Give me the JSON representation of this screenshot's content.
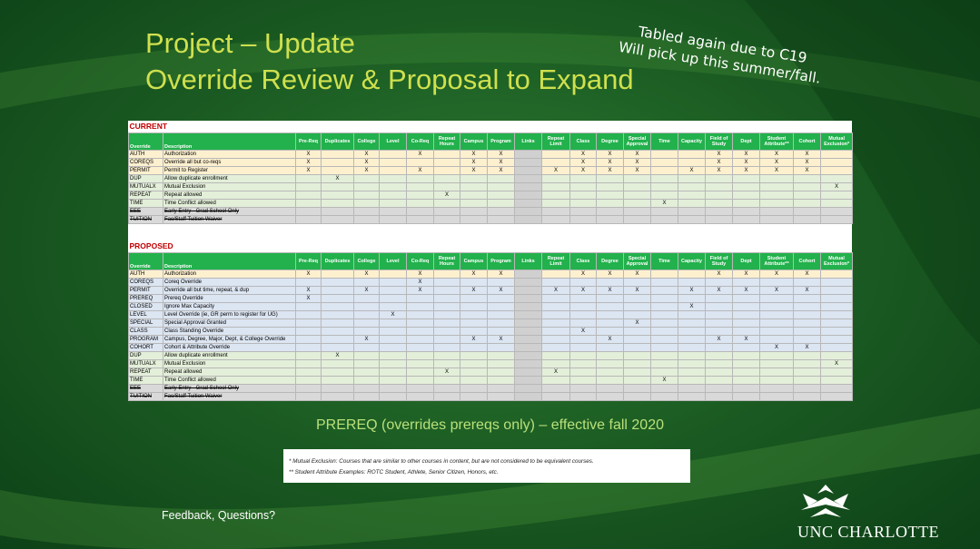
{
  "header": {
    "title": "Project – Update",
    "subtitle": "Override Review & Proposal to Expand"
  },
  "note": [
    "Tabled again due to C19",
    "Will pick up this summer/fall."
  ],
  "columns": [
    "Override",
    "Description",
    "Pre-Req",
    "Duplicates",
    "College",
    "Level",
    "Co-Req",
    "Repeat Hours",
    "Campus",
    "Program",
    "Links",
    "Repeat Limit",
    "Class",
    "Degree",
    "Special Approval",
    "Time",
    "Capacity",
    "Field of Study",
    "Dept",
    "Student Attribute**",
    "Cohort",
    "Mutual Exclusion*"
  ],
  "tables": [
    {
      "title": "CURRENT",
      "rows": [
        {
          "override": "AUTH",
          "description": "Authorization",
          "cells": [
            "X",
            null,
            "X",
            null,
            "X",
            null,
            "X",
            "X",
            null,
            null,
            "X",
            "X",
            "X",
            null,
            null,
            "X",
            "X",
            "X",
            "X",
            null
          ]
        },
        {
          "override": "COREQS",
          "description": "Override all but co-reqs",
          "cells": [
            "X",
            null,
            "X",
            null,
            null,
            null,
            "X",
            "X",
            null,
            null,
            "X",
            "X",
            "X",
            null,
            null,
            "X",
            "X",
            "X",
            "X",
            null
          ]
        },
        {
          "override": "PERMIT",
          "description": "Permit to Register",
          "cells": [
            "X",
            null,
            "X",
            null,
            "X",
            null,
            "X",
            "X",
            null,
            "X",
            "X",
            "X",
            "X",
            null,
            "X",
            "X",
            "X",
            "X",
            "X",
            null
          ]
        },
        {
          "override": "DUP",
          "description": "Allow duplicate enrollment",
          "cells": [
            null,
            "X",
            null,
            null,
            null,
            null,
            null,
            null,
            null,
            null,
            null,
            null,
            null,
            null,
            null,
            null,
            null,
            null,
            null,
            null
          ]
        },
        {
          "override": "MUTUALX",
          "description": "Mutual Exclusion",
          "cells": [
            null,
            null,
            null,
            null,
            null,
            null,
            null,
            null,
            null,
            null,
            null,
            null,
            null,
            null,
            null,
            null,
            null,
            null,
            null,
            "X"
          ]
        },
        {
          "override": "REPEAT",
          "description": "Repeat allowed",
          "cells": [
            null,
            null,
            null,
            null,
            null,
            "X",
            null,
            null,
            null,
            null,
            null,
            null,
            null,
            null,
            null,
            null,
            null,
            null,
            null,
            null
          ]
        },
        {
          "override": "TIME",
          "description": "Time Conflict allowed",
          "cells": [
            null,
            null,
            null,
            null,
            null,
            null,
            null,
            null,
            null,
            null,
            null,
            null,
            null,
            "X",
            null,
            null,
            null,
            null,
            null,
            null
          ]
        },
        {
          "override": "EEE",
          "description": "Early Entry - Grad School Only",
          "cells": [
            null,
            null,
            null,
            null,
            null,
            null,
            null,
            null,
            null,
            null,
            null,
            null,
            null,
            null,
            null,
            null,
            null,
            null,
            null,
            null
          ]
        },
        {
          "override": "TUITION",
          "description": "Fac/Staff Tuition Waiver",
          "cells": [
            null,
            null,
            null,
            null,
            null,
            null,
            null,
            null,
            null,
            null,
            null,
            null,
            null,
            null,
            null,
            null,
            null,
            null,
            null,
            null
          ]
        }
      ]
    },
    {
      "title": "PROPOSED",
      "rows": [
        {
          "override": "AUTH",
          "description": "Authorization",
          "cells": [
            "X",
            null,
            "X",
            null,
            "X",
            null,
            "X",
            "X",
            null,
            null,
            "X",
            "X",
            "X",
            null,
            null,
            "X",
            "X",
            "X",
            "X",
            null
          ]
        },
        {
          "override": "COREQS",
          "description": "Coreq Override",
          "cells": [
            null,
            null,
            null,
            null,
            "X",
            null,
            null,
            null,
            null,
            null,
            null,
            null,
            null,
            null,
            null,
            null,
            null,
            null,
            null,
            null
          ]
        },
        {
          "override": "PERMIT",
          "description": "Override all but time, repeat, & dup",
          "cells": [
            "X",
            null,
            "X",
            null,
            "X",
            null,
            "X",
            "X",
            null,
            "X",
            "X",
            "X",
            "X",
            null,
            "X",
            "X",
            "X",
            "X",
            "X",
            null
          ]
        },
        {
          "override": "PREREQ",
          "description": "Prereq Override",
          "cells": [
            "X",
            null,
            null,
            null,
            null,
            null,
            null,
            null,
            null,
            null,
            null,
            null,
            null,
            null,
            null,
            null,
            null,
            null,
            null,
            null
          ]
        },
        {
          "override": "CLOSED",
          "description": "Ignore Max Capacity",
          "cells": [
            null,
            null,
            null,
            null,
            null,
            null,
            null,
            null,
            null,
            null,
            null,
            null,
            null,
            null,
            "X",
            null,
            null,
            null,
            null,
            null
          ]
        },
        {
          "override": "LEVEL",
          "description": "Level Override (ie, GR perm to register for UG)",
          "cells": [
            null,
            null,
            null,
            "X",
            null,
            null,
            null,
            null,
            null,
            null,
            null,
            null,
            null,
            null,
            null,
            null,
            null,
            null,
            null,
            null
          ]
        },
        {
          "override": "SPECIAL",
          "description": "Special Approval Granted",
          "cells": [
            null,
            null,
            null,
            null,
            null,
            null,
            null,
            null,
            null,
            null,
            null,
            null,
            "X",
            null,
            null,
            null,
            null,
            null,
            null,
            null
          ]
        },
        {
          "override": "CLASS",
          "description": "Class Standing Override",
          "cells": [
            null,
            null,
            null,
            null,
            null,
            null,
            null,
            null,
            null,
            null,
            "X",
            null,
            null,
            null,
            null,
            null,
            null,
            null,
            null,
            null
          ]
        },
        {
          "override": "PROGRAM",
          "description": "Campus, Degree, Major, Dept, & College Override",
          "cells": [
            null,
            null,
            "X",
            null,
            null,
            null,
            "X",
            "X",
            null,
            null,
            null,
            "X",
            null,
            null,
            null,
            "X",
            "X",
            null,
            null,
            null
          ]
        },
        {
          "override": "COHORT",
          "description": "Cohort & Attribute Override",
          "cells": [
            null,
            null,
            null,
            null,
            null,
            null,
            null,
            null,
            null,
            null,
            null,
            null,
            null,
            null,
            null,
            null,
            null,
            "X",
            "X",
            null
          ]
        },
        {
          "override": "DUP",
          "description": "Allow duplicate enrollment",
          "cells": [
            null,
            "X",
            null,
            null,
            null,
            null,
            null,
            null,
            null,
            null,
            null,
            null,
            null,
            null,
            null,
            null,
            null,
            null,
            null,
            null
          ]
        },
        {
          "override": "MUTUALX",
          "description": "Mutual Exclusion",
          "cells": [
            null,
            null,
            null,
            null,
            null,
            null,
            null,
            null,
            null,
            null,
            null,
            null,
            null,
            null,
            null,
            null,
            null,
            null,
            null,
            "X"
          ]
        },
        {
          "override": "REPEAT",
          "description": "Repeat allowed",
          "cells": [
            null,
            null,
            null,
            null,
            null,
            "X",
            null,
            null,
            null,
            "X",
            null,
            null,
            null,
            null,
            null,
            null,
            null,
            null,
            null,
            null
          ]
        },
        {
          "override": "TIME",
          "description": "Time Conflict allowed",
          "cells": [
            null,
            null,
            null,
            null,
            null,
            null,
            null,
            null,
            null,
            null,
            null,
            null,
            null,
            "X",
            null,
            null,
            null,
            null,
            null,
            null
          ]
        },
        {
          "override": "EEE",
          "description": "Early Entry - Grad School Only",
          "cells": [
            null,
            null,
            null,
            null,
            null,
            null,
            null,
            null,
            null,
            null,
            null,
            null,
            null,
            null,
            null,
            null,
            null,
            null,
            null,
            null
          ]
        },
        {
          "override": "TUITION",
          "description": "Fac/Staff Tuition Waiver",
          "cells": [
            null,
            null,
            null,
            null,
            null,
            null,
            null,
            null,
            null,
            null,
            null,
            null,
            null,
            null,
            null,
            null,
            null,
            null,
            null,
            null
          ]
        }
      ]
    }
  ],
  "effective_note": "PREREQ (overrides prereqs only) – effective fall 2020",
  "footnotes": [
    "* Mutual Exclusion:  Courses that are similar to other courses in content, but are not considered to be equivalent courses.",
    "** Student Attribute Examples:  ROTC Student, Athlete, Senior Citizen, Honors, etc."
  ],
  "footer": "Feedback, Questions?",
  "logo": "UNC CHARLOTTE"
}
